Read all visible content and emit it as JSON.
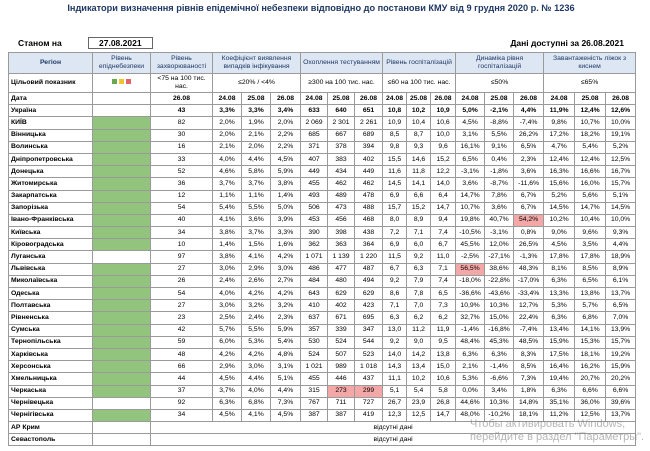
{
  "header": {
    "title": "Індикатори визначення рівнів епідемічної небезпеки відповідно до постанови КМУ від 9 грудня 2020 р. № 1236",
    "as_of_label": "Станом на",
    "as_of_date": "27.08.2021",
    "available": "Дані доступні за 26.08.2021"
  },
  "table": {
    "columns": [
      "Регіон",
      "Рівень епіднебезпеки",
      "Рівень захворюваності",
      "Коефіцієнт виявлення випадків інфікування",
      "Охоплення тестуванням",
      "Рівень госпіталізацій",
      "Динаміка рівня госпіталізацій",
      "Завантаженість ліжок з киснем"
    ],
    "target_label": "Цільовий показник",
    "targets": [
      "<75 на 100 тис. нас.",
      "≤20% / <4%",
      "≥300 на 100 тис. нас.",
      "≤60 на 100 тис. нас.",
      "≤50%",
      "≤65%"
    ],
    "date_label": "Дата",
    "dates": [
      "24.08",
      "25.08",
      "26.08"
    ],
    "rows": [
      {
        "level": null,
        "cells": [
          "Україна",
          "43",
          "3,3%",
          "3,3%",
          "3,4%",
          "633",
          "640",
          "651",
          "10,8",
          "10,2",
          "10,9",
          "5,0%",
          "-2,1%",
          "4,4%",
          "11,9%",
          "12,4%",
          "12,6%"
        ]
      },
      {
        "level": "#93c47d",
        "cells": [
          "КИЇВ",
          "82",
          "2,0%",
          "1,9%",
          "2,0%",
          "2 069",
          "2 301",
          "2 261",
          "10,9",
          "10,4",
          "10,6",
          "4,5%",
          "-8,8%",
          "-7,4%",
          "9,8%",
          "10,7%",
          "10,0%"
        ]
      },
      {
        "level": "#93c47d",
        "cells": [
          "Вінницька",
          "30",
          "2,0%",
          "2,1%",
          "2,2%",
          "685",
          "667",
          "689",
          "8,5",
          "8,7",
          "10,0",
          "3,1%",
          "5,5%",
          "26,2%",
          "17,2%",
          "18,2%",
          "19,1%"
        ]
      },
      {
        "level": "#93c47d",
        "cells": [
          "Волинська",
          "16",
          "2,1%",
          "2,0%",
          "2,2%",
          "371",
          "378",
          "394",
          "9,8",
          "9,3",
          "9,6",
          "16,1%",
          "9,1%",
          "6,5%",
          "4,7%",
          "5,4%",
          "5,2%"
        ]
      },
      {
        "level": "#93c47d",
        "cells": [
          "Дніпропетровська",
          "33",
          "4,0%",
          "4,4%",
          "4,5%",
          "407",
          "383",
          "402",
          "15,5",
          "14,6",
          "15,2",
          "6,5%",
          "0,4%",
          "2,3%",
          "12,4%",
          "12,4%",
          "12,5%"
        ]
      },
      {
        "level": "#93c47d",
        "cells": [
          "Донецька",
          "52",
          "4,6%",
          "5,8%",
          "5,9%",
          "449",
          "434",
          "449",
          "11,6",
          "11,8",
          "12,2",
          "-3,1%",
          "-1,8%",
          "3,6%",
          "16,3%",
          "16,6%",
          "16,7%"
        ]
      },
      {
        "level": "#93c47d",
        "cells": [
          "Житомирська",
          "36",
          "3,7%",
          "3,7%",
          "3,8%",
          "455",
          "462",
          "462",
          "14,5",
          "14,1",
          "14,0",
          "3,6%",
          "-8,7%",
          "-11,6%",
          "15,6%",
          "16,0%",
          "15,7%"
        ]
      },
      {
        "level": "#93c47d",
        "cells": [
          "Закарпатська",
          "12",
          "1,1%",
          "1,1%",
          "1,4%",
          "493",
          "489",
          "478",
          "6,9",
          "6,6",
          "6,4",
          "14,7%",
          "7,8%",
          "6,7%",
          "5,2%",
          "5,6%",
          "5,1%"
        ]
      },
      {
        "level": "#93c47d",
        "cells": [
          "Запорізька",
          "54",
          "5,4%",
          "5,5%",
          "5,0%",
          "506",
          "473",
          "488",
          "15,7",
          "15,2",
          "14,7",
          "10,7%",
          "3,6%",
          "6,7%",
          "14,5%",
          "14,7%",
          "14,5%"
        ]
      },
      {
        "level": "#93c47d",
        "cells": [
          "Івано-Франківська",
          "40",
          "4,1%",
          "3,6%",
          "3,9%",
          "453",
          "456",
          "468",
          "8,0",
          "8,9",
          "9,4",
          "19,8%",
          "40,7%",
          {
            "text": "54,2%",
            "color": "#f4a7a7"
          },
          "10,2%",
          "10,4%",
          "10,0%"
        ]
      },
      {
        "level": "#93c47d",
        "cells": [
          "Київська",
          "34",
          "3,8%",
          "3,7%",
          "3,3%",
          "390",
          "398",
          "438",
          "7,2",
          "7,1",
          "7,4",
          "-10,5%",
          "-3,1%",
          "0,8%",
          "9,0%",
          "9,6%",
          "9,3%"
        ]
      },
      {
        "level": "#93c47d",
        "cells": [
          "Кіровоградська",
          "10",
          "1,4%",
          "1,5%",
          "1,6%",
          "362",
          "363",
          "364",
          "6,9",
          "6,0",
          "6,7",
          "45,5%",
          "12,0%",
          "26,5%",
          "4,5%",
          "3,5%",
          "4,4%"
        ]
      },
      {
        "level": "#ffffff",
        "cells": [
          "Луганська",
          "97",
          "3,8%",
          "4,1%",
          "4,2%",
          "1 071",
          "1 139",
          "1 220",
          "11,5",
          "9,2",
          "11,0",
          "-2,5%",
          "-27,1%",
          "-1,3%",
          "17,8%",
          "17,8%",
          "18,9%"
        ]
      },
      {
        "level": "#93c47d",
        "cells": [
          "Львівська",
          "27",
          "3,0%",
          "2,9%",
          "3,0%",
          "486",
          "477",
          "487",
          "6,7",
          "6,3",
          "7,1",
          {
            "text": "56,5%",
            "color": "#f4a7a7"
          },
          "38,6%",
          "48,3%",
          "8,1%",
          "8,5%",
          "8,9%"
        ]
      },
      {
        "level": "#93c47d",
        "cells": [
          "Миколаївська",
          "26",
          "2,4%",
          "2,6%",
          "2,7%",
          "484",
          "480",
          "494",
          "9,2",
          "7,9",
          "7,4",
          "-18,0%",
          "-22,8%",
          "-17,0%",
          "6,3%",
          "6,5%",
          "6,1%"
        ]
      },
      {
        "level": "#93c47d",
        "cells": [
          "Одеська",
          "54",
          "4,0%",
          "4,2%",
          "4,2%",
          "643",
          "629",
          "629",
          "8,6",
          "7,8",
          "6,5",
          "-36,6%",
          "-43,6%",
          "-33,4%",
          "13,3%",
          "13,8%",
          "13,7%"
        ]
      },
      {
        "level": "#93c47d",
        "cells": [
          "Полтавська",
          "27",
          "3,0%",
          "3,2%",
          "3,2%",
          "410",
          "402",
          "423",
          "7,1",
          "7,0",
          "7,3",
          "10,9%",
          "10,3%",
          "12,7%",
          "5,3%",
          "5,7%",
          "6,5%"
        ]
      },
      {
        "level": "#93c47d",
        "cells": [
          "Рівненська",
          "23",
          "2,5%",
          "2,4%",
          "2,3%",
          "637",
          "671",
          "695",
          "6,3",
          "6,2",
          "6,2",
          "32,7%",
          "15,0%",
          "22,4%",
          "6,3%",
          "6,8%",
          "7,0%"
        ]
      },
      {
        "level": "#93c47d",
        "cells": [
          "Сумська",
          "42",
          "5,7%",
          "5,5%",
          "5,9%",
          "357",
          "339",
          "347",
          "13,0",
          "11,2",
          "11,9",
          "-1,4%",
          "-16,8%",
          "-7,4%",
          "13,4%",
          "14,1%",
          "13,9%"
        ]
      },
      {
        "level": "#93c47d",
        "cells": [
          "Тернопільська",
          "59",
          "6,0%",
          "5,3%",
          "5,4%",
          "530",
          "524",
          "544",
          "9,2",
          "9,0",
          "9,5",
          "48,4%",
          "45,3%",
          "48,5%",
          "15,9%",
          "15,3%",
          "15,7%"
        ]
      },
      {
        "level": "#93c47d",
        "cells": [
          "Харківська",
          "48",
          "4,2%",
          "4,2%",
          "4,8%",
          "524",
          "507",
          "523",
          "14,0",
          "14,2",
          "13,8",
          "6,3%",
          "6,3%",
          "8,3%",
          "17,5%",
          "18,1%",
          "19,2%"
        ]
      },
      {
        "level": "#93c47d",
        "cells": [
          "Херсонська",
          "66",
          "2,9%",
          "3,0%",
          "3,1%",
          "1 021",
          "989",
          "1 018",
          "14,3",
          "13,4",
          "15,0",
          "2,1%",
          "-1,4%",
          "8,5%",
          "16,4%",
          "16,2%",
          "15,9%"
        ]
      },
      {
        "level": "#93c47d",
        "cells": [
          "Хмельницька",
          "44",
          "4,5%",
          "4,4%",
          "5,1%",
          "455",
          "446",
          "437",
          "11,1",
          "10,2",
          "10,6",
          "5,3%",
          "-6,6%",
          "7,3%",
          "19,4%",
          "20,7%",
          "20,2%"
        ]
      },
      {
        "level": "#93c47d",
        "cells": [
          "Черкаська",
          "37",
          "3,7%",
          "4,0%",
          "4,4%",
          "315",
          {
            "text": "273",
            "color": "#f4a7a7"
          },
          {
            "text": "299",
            "color": "#f4a7a7"
          },
          "5,1",
          "5,4",
          "5,8",
          "0,0%",
          "3,4%",
          "1,8%",
          "6,3%",
          "6,6%",
          "6,6%"
        ]
      },
      {
        "level": "#ffffff",
        "cells": [
          "Чернівецька",
          "92",
          "6,3%",
          "6,8%",
          "7,3%",
          "767",
          "711",
          "727",
          "26,7",
          "23,9",
          "26,8",
          "44,6%",
          "10,3%",
          "14,8%",
          "35,1%",
          "36,0%",
          "39,6%"
        ]
      },
      {
        "level": "#93c47d",
        "cells": [
          "Чернігівська",
          "34",
          "4,5%",
          "4,1%",
          "4,5%",
          "387",
          "387",
          "419",
          "12,3",
          "12,5",
          "14,7",
          "48,0%",
          "-10,2%",
          "18,1%",
          "11,2%",
          "12,5%",
          "13,7%"
        ]
      },
      {
        "level": null,
        "cells": [
          "АР Крим",
          "відсутні дані"
        ]
      },
      {
        "level": null,
        "cells": [
          "Севастополь",
          "відсутні дані"
        ]
      }
    ]
  },
  "watermark": [
    "Чтобы активировать Windows,",
    "перейдите в раздел \"Параметры\"."
  ]
}
